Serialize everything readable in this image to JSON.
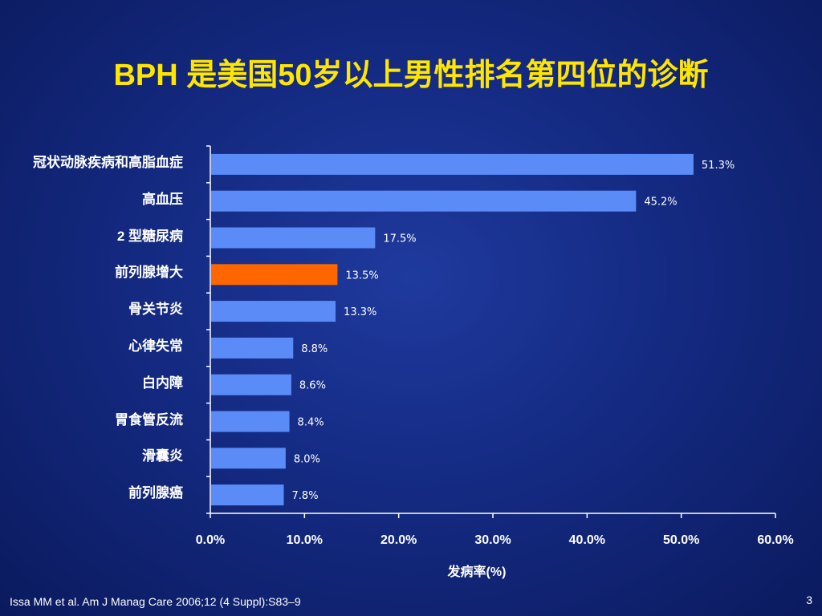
{
  "slide": {
    "title": "BPH 是美国50岁以上男性排名第四位的诊断",
    "footer": "Issa MM et al. Am J Manag Care 2006;12 (4 Suppl):S83–9",
    "page_number": "3"
  },
  "chart_data": {
    "type": "bar",
    "orientation": "horizontal",
    "categories": [
      "冠状动脉疾病和高脂血症",
      "高血压",
      "2 型糖尿病",
      "前列腺增大",
      "骨关节炎",
      "心律失常",
      "白内障",
      "胃食管反流",
      "滑囊炎",
      "前列腺癌"
    ],
    "values": [
      51.3,
      45.2,
      17.5,
      13.5,
      13.3,
      8.8,
      8.6,
      8.4,
      8.0,
      7.8
    ],
    "value_labels": [
      "51.3%",
      "45.2%",
      "17.5%",
      "13.5%",
      "13.3%",
      "8.8%",
      "8.6%",
      "8.4%",
      "8.0%",
      "7.8%"
    ],
    "highlight_index": 3,
    "xlabel": "发病率(%)",
    "ylabel": "",
    "xlim": [
      0,
      60
    ],
    "x_ticks": [
      0,
      10,
      20,
      30,
      40,
      50,
      60
    ],
    "x_tick_labels": [
      "0.0%",
      "10.0%",
      "20.0%",
      "30.0%",
      "40.0%",
      "50.0%",
      "60.0%"
    ],
    "grid": false,
    "legend": "none",
    "colors": {
      "bar": "#5b8bf7",
      "highlight": "#ff6600",
      "axis": "#ffffff",
      "title": "#ffe600"
    }
  }
}
